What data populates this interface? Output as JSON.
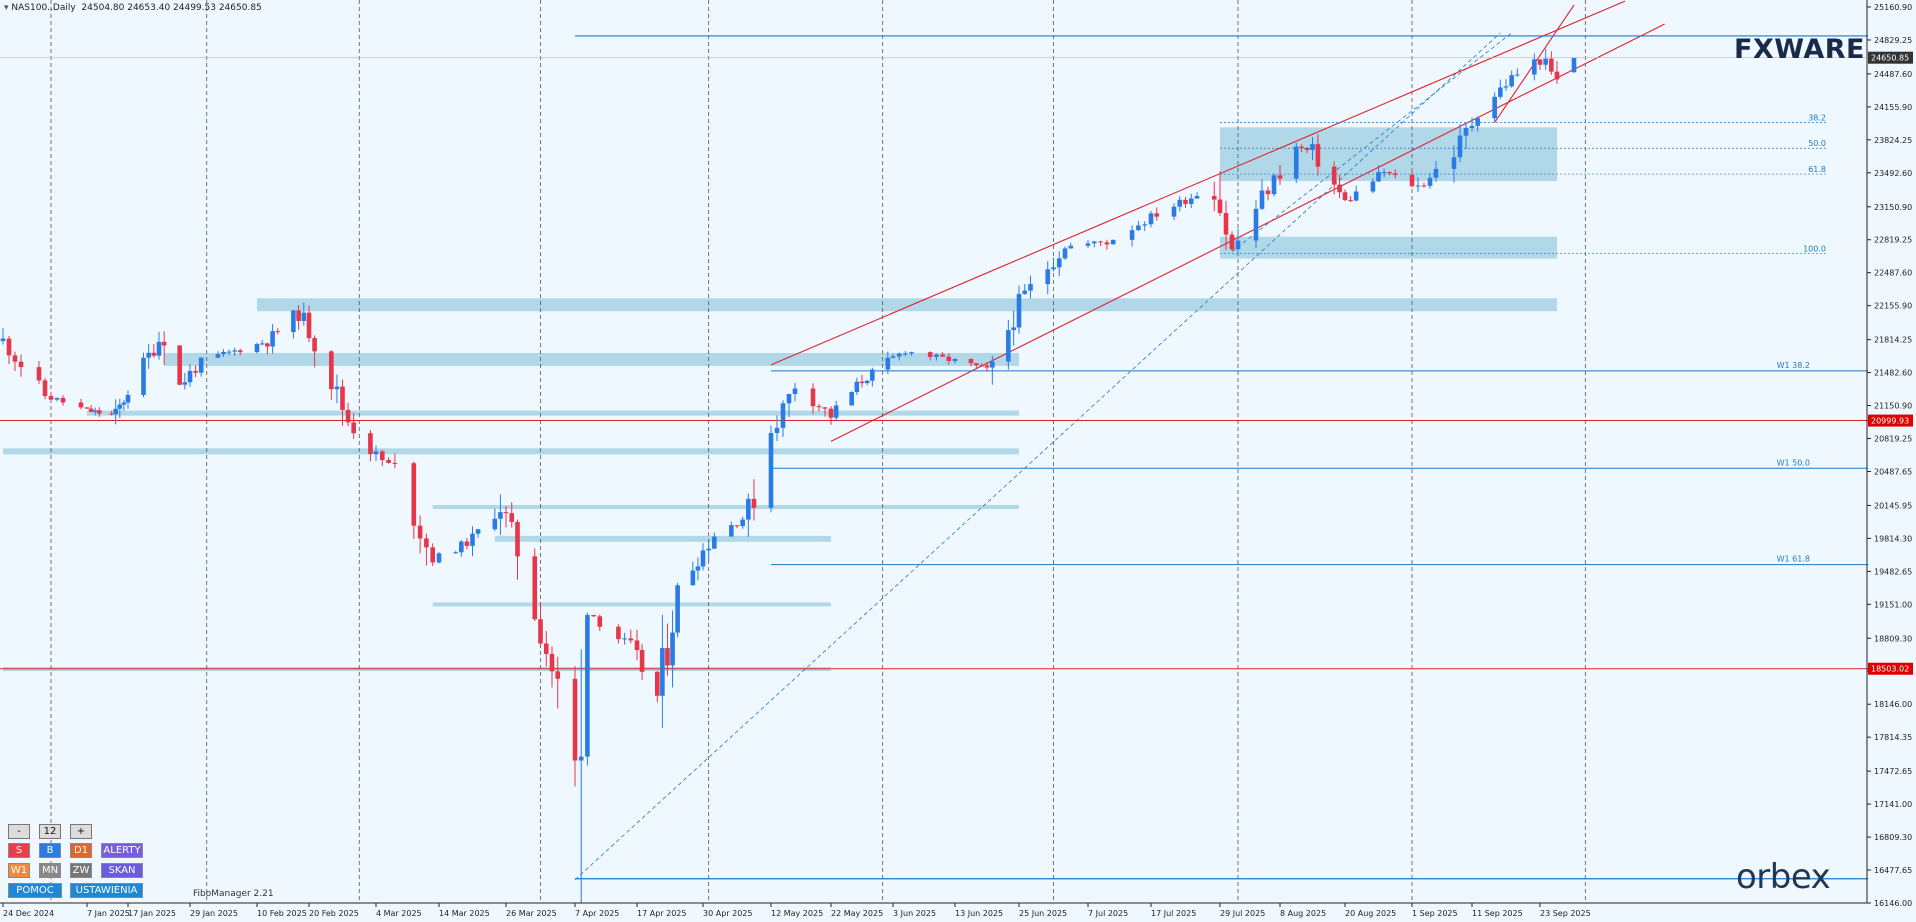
{
  "header": {
    "symbol_label": "NAS100..Daily",
    "ohlc": "24504.80 24653.40 24499.53 24650.85"
  },
  "watermark": {
    "brand": "FXWARE",
    "broker": "orbex"
  },
  "indicator_label": "FiboManager 2.21",
  "controls": {
    "minus": "-",
    "period": "12",
    "plus": "+",
    "buttons": [
      {
        "label": "S",
        "color": "#e8404a"
      },
      {
        "label": "B",
        "color": "#2a7be4"
      },
      {
        "label": "D1",
        "color": "#e0662a"
      },
      {
        "label": "ALERTY",
        "color": "#7a5ce0"
      },
      {
        "label": "W1",
        "color": "#f08a3c"
      },
      {
        "label": "MN",
        "color": "#888888"
      },
      {
        "label": "ZW",
        "color": "#777777"
      },
      {
        "label": "SKAN",
        "color": "#6a5ce0"
      },
      {
        "label": "POMOC",
        "color": "#1e88d6"
      },
      {
        "label": "USTAWIENIA",
        "color": "#1e88d6"
      }
    ]
  },
  "colors": {
    "bull": "#2a7be4",
    "bear": "#e5364a",
    "zone": "#a9d4e6",
    "level": "#1e78c8",
    "channel": "#e0222e",
    "background": "#f0f8ff"
  },
  "chart_data": {
    "type": "candlestick",
    "symbol": "NAS100",
    "timeframe": "Daily",
    "y_ticks": [
      "25160.90",
      "24829.25",
      "24487.60",
      "24155.90",
      "23824.25",
      "23492.60",
      "23150.90",
      "22819.25",
      "22487.60",
      "22155.90",
      "21814.25",
      "21482.60",
      "21150.90",
      "20819.25",
      "20487.65",
      "20145.95",
      "19814.30",
      "19482.65",
      "19151.00",
      "18809.30",
      "18477.65",
      "18146.00",
      "17814.35",
      "17472.65",
      "17141.00",
      "16809.30",
      "16477.65",
      "16146.00"
    ],
    "x_ticks": [
      "24 Dec 2024",
      "7 Jan 2025",
      "17 Jan 2025",
      "29 Jan 2025",
      "10 Feb 2025",
      "20 Feb 2025",
      "4 Mar 2025",
      "14 Mar 2025",
      "26 Mar 2025",
      "7 Apr 2025",
      "17 Apr 2025",
      "30 Apr 2025",
      "12 May 2025",
      "22 May 2025",
      "3 Jun 2025",
      "13 Jun 2025",
      "25 Jun 2025",
      "7 Jul 2025",
      "17 Jul 2025",
      "29 Jul 2025",
      "8 Aug 2025",
      "20 Aug 2025",
      "1 Sep 2025",
      "11 Sep 2025",
      "23 Sep 2025"
    ],
    "current_price": "24650.85",
    "price_labels": [
      "20999.93",
      "18503.02"
    ],
    "fib_labels": [
      "38.2",
      "50.0",
      "61.8",
      "100.0"
    ],
    "weekly_labels": [
      "W1 38.2",
      "W1 50.0",
      "W1 61.8"
    ],
    "close_path": [
      {
        "date": "2024-12-24",
        "close": 21800
      },
      {
        "date": "2024-12-31",
        "close": 21250
      },
      {
        "date": "2025-01-07",
        "close": 21100
      },
      {
        "date": "2025-01-14",
        "close": 21050
      },
      {
        "date": "2025-01-21",
        "close": 21650
      },
      {
        "date": "2025-01-24",
        "close": 21900
      },
      {
        "date": "2025-01-27",
        "close": 21350
      },
      {
        "date": "2025-01-31",
        "close": 21600
      },
      {
        "date": "2025-02-06",
        "close": 21700
      },
      {
        "date": "2025-02-12",
        "close": 21800
      },
      {
        "date": "2025-02-18",
        "close": 22100
      },
      {
        "date": "2025-02-21",
        "close": 21800
      },
      {
        "date": "2025-02-27",
        "close": 21000
      },
      {
        "date": "2025-03-03",
        "close": 20700
      },
      {
        "date": "2025-03-07",
        "close": 20500
      },
      {
        "date": "2025-03-13",
        "close": 19600
      },
      {
        "date": "2025-03-20",
        "close": 19800
      },
      {
        "date": "2025-03-25",
        "close": 20150
      },
      {
        "date": "2025-03-28",
        "close": 19700
      },
      {
        "date": "2025-04-04",
        "close": 18300
      },
      {
        "date": "2025-04-08",
        "close": 17250
      },
      {
        "date": "2025-04-09",
        "close": 19100
      },
      {
        "date": "2025-04-16",
        "close": 18700
      },
      {
        "date": "2025-04-21",
        "close": 18200
      },
      {
        "date": "2025-04-25",
        "close": 19300
      },
      {
        "date": "2025-05-02",
        "close": 19850
      },
      {
        "date": "2025-05-08",
        "close": 20050
      },
      {
        "date": "2025-05-12",
        "close": 20900
      },
      {
        "date": "2025-05-16",
        "close": 21350
      },
      {
        "date": "2025-05-22",
        "close": 21050
      },
      {
        "date": "2025-05-28",
        "close": 21400
      },
      {
        "date": "2025-06-05",
        "close": 21700
      },
      {
        "date": "2025-06-13",
        "close": 21600
      },
      {
        "date": "2025-06-20",
        "close": 21500
      },
      {
        "date": "2025-06-25",
        "close": 22200
      },
      {
        "date": "2025-07-03",
        "close": 22750
      },
      {
        "date": "2025-07-10",
        "close": 22800
      },
      {
        "date": "2025-07-17",
        "close": 23050
      },
      {
        "date": "2025-07-24",
        "close": 23250
      },
      {
        "date": "2025-07-28",
        "close": 23400
      },
      {
        "date": "2025-07-31",
        "close": 22700
      },
      {
        "date": "2025-08-05",
        "close": 23250
      },
      {
        "date": "2025-08-11",
        "close": 23750
      },
      {
        "date": "2025-08-14",
        "close": 23700
      },
      {
        "date": "2025-08-20",
        "close": 23200
      },
      {
        "date": "2025-08-27",
        "close": 23500
      },
      {
        "date": "2025-09-02",
        "close": 23350
      },
      {
        "date": "2025-09-08",
        "close": 23700
      },
      {
        "date": "2025-09-12",
        "close": 24100
      },
      {
        "date": "2025-09-18",
        "close": 24450
      },
      {
        "date": "2025-09-23",
        "close": 24650
      },
      {
        "date": "2025-09-26",
        "close": 24400
      },
      {
        "date": "2025-09-29",
        "close": 24650.85
      }
    ],
    "zones": [
      {
        "from": "2025-07-29",
        "to": "2025-09-26",
        "low": 23410,
        "high": 23950
      },
      {
        "from": "2025-07-29",
        "to": "2025-09-26",
        "low": 22630,
        "high": 22850
      },
      {
        "from": "2025-02-10",
        "to": "2025-09-26",
        "low": 22100,
        "high": 22230
      },
      {
        "from": "2025-01-24",
        "to": "2025-06-25",
        "low": 21550,
        "high": 21680
      },
      {
        "from": "2025-01-07",
        "to": "2025-06-25",
        "low": 21050,
        "high": 21100
      },
      {
        "from": "2024-12-24",
        "to": "2025-06-25",
        "low": 20660,
        "high": 20720
      },
      {
        "from": "2025-03-13",
        "to": "2025-06-25",
        "low": 20110,
        "high": 20150
      },
      {
        "from": "2025-03-24",
        "to": "2025-05-22",
        "low": 19780,
        "high": 19840
      },
      {
        "from": "2025-03-13",
        "to": "2025-05-22",
        "low": 19130,
        "high": 19170
      },
      {
        "from": "2024-12-24",
        "to": "2025-05-22",
        "low": 18480,
        "high": 18520
      }
    ]
  }
}
